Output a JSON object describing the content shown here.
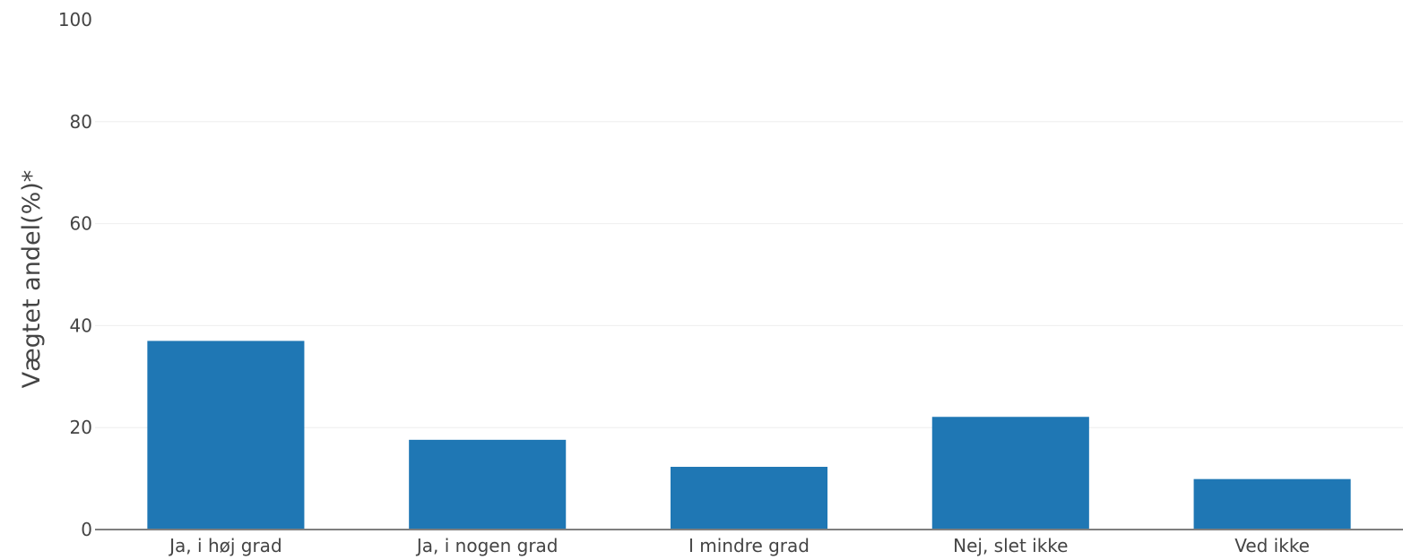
{
  "chart_data": {
    "type": "bar",
    "title": "",
    "xlabel": "",
    "ylabel": "Vægtet andel(%)*",
    "categories": [
      "Ja, i høj grad",
      "Ja, i nogen grad",
      "I mindre grad",
      "Nej, slet ikke",
      "Ved ikke"
    ],
    "values": [
      37,
      17.6,
      12.3,
      22.1,
      9.9
    ],
    "ylim": [
      0,
      100
    ],
    "yticks": [
      0,
      20,
      40,
      60,
      80,
      100
    ],
    "grid": true,
    "legend": "none",
    "bar_color": "#1f77b4"
  }
}
